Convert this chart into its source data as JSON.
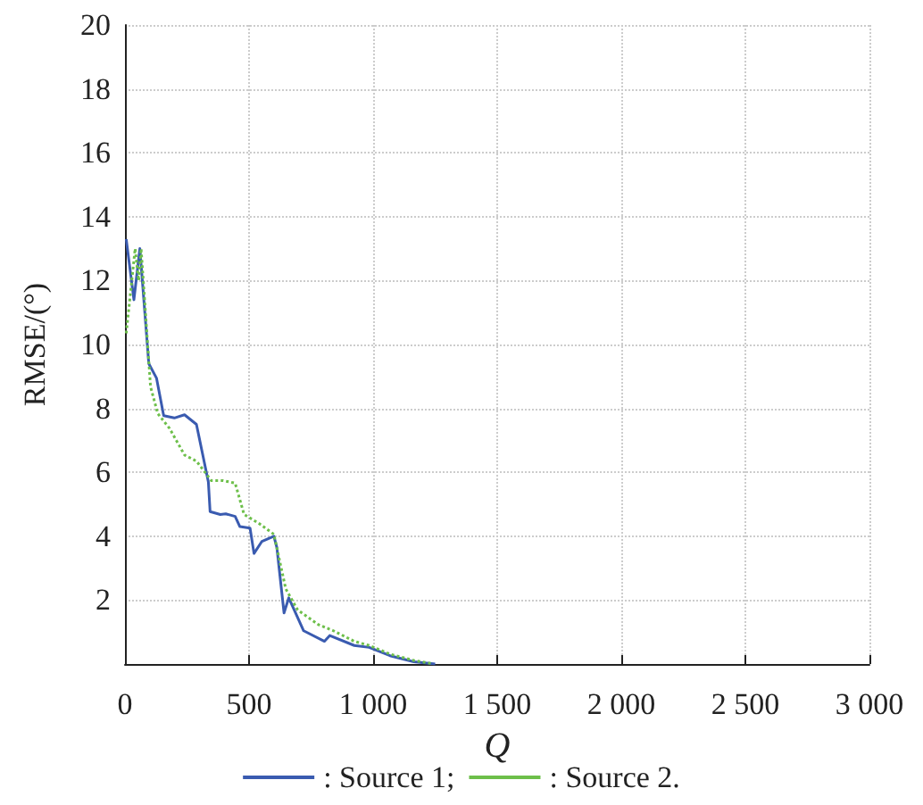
{
  "chart_data": {
    "type": "line",
    "xlabel": "Q",
    "ylabel": "RMSE/(°)",
    "xlim": [
      0,
      3000
    ],
    "ylim": [
      0,
      20
    ],
    "xticks": [
      0,
      {
        "value": 500,
        "label": "500"
      },
      {
        "value": 1000,
        "label": "1 000"
      },
      {
        "value": 1500,
        "label": "1 500"
      },
      {
        "value": 2000,
        "label": "2 000"
      },
      {
        "value": 2500,
        "label": "2 500"
      },
      {
        "value": 3000,
        "label": "3 000"
      }
    ],
    "yticks": [
      {
        "value": 0,
        "label": null
      },
      2,
      4,
      6,
      8,
      10,
      12,
      14,
      16,
      18,
      20
    ],
    "grid": true,
    "legend": "bottom",
    "marker": "none",
    "series": [
      {
        "name": ": Source 1;",
        "color": "#3a5bb0",
        "line_style": "solid",
        "x": [
          5,
          36,
          60,
          96,
          127,
          156,
          199,
          240,
          288,
          336,
          343,
          384,
          406,
          444,
          463,
          504,
          520,
          552,
          600,
          612,
          641,
          660,
          720,
          804,
          825,
          924,
          984,
          1068,
          1164,
          1250
        ],
        "values": [
          13.3,
          11.4,
          13.0,
          9.4,
          8.95,
          7.77,
          7.7,
          7.8,
          7.5,
          5.7,
          4.77,
          4.68,
          4.7,
          4.62,
          4.3,
          4.25,
          3.46,
          3.84,
          4.0,
          3.65,
          1.6,
          2.07,
          1.04,
          0.71,
          0.89,
          0.58,
          0.52,
          0.26,
          0.07,
          0
        ]
      },
      {
        "name": ": Source 2.",
        "color": "#6dbf4a",
        "line_style": "dotted",
        "x": [
          5,
          41,
          55,
          65,
          103,
          132,
          180,
          240,
          288,
          348,
          396,
          444,
          480,
          540,
          600,
          648,
          696,
          780,
          840,
          924,
          984,
          1068,
          1164,
          1235
        ],
        "values": [
          10.35,
          13.0,
          12.0,
          13.0,
          8.68,
          7.84,
          7.37,
          6.54,
          6.35,
          5.74,
          5.74,
          5.66,
          4.68,
          4.4,
          4.06,
          2.35,
          1.69,
          1.23,
          1.04,
          0.71,
          0.58,
          0.31,
          0.11,
          0.02
        ]
      }
    ]
  }
}
